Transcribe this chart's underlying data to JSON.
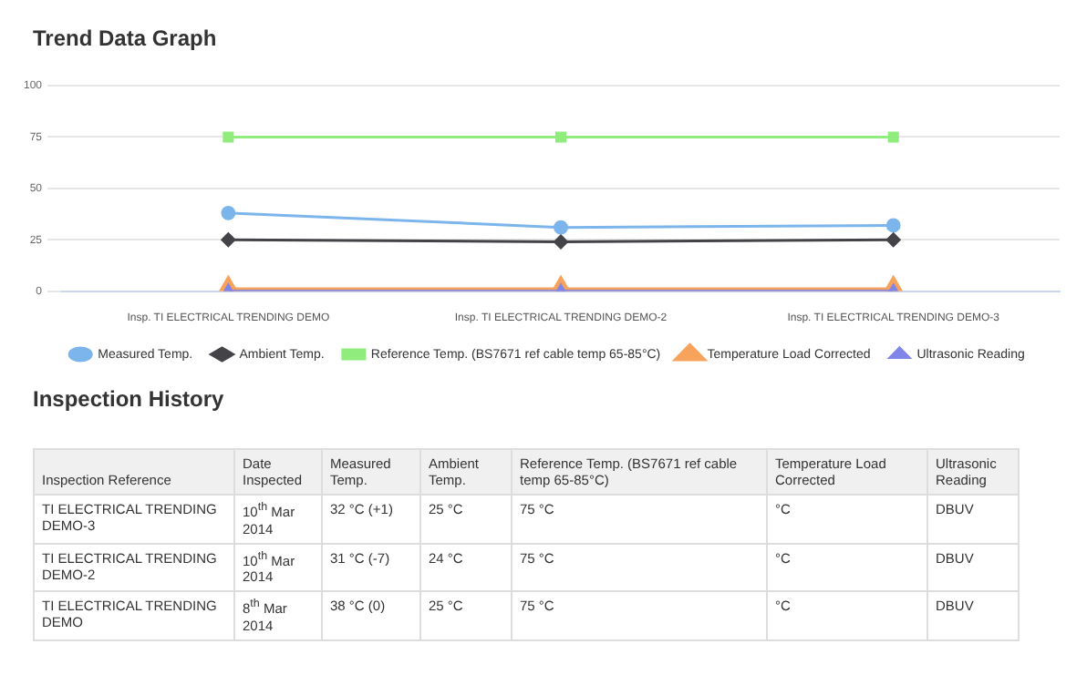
{
  "chart_data": [
    {
      "type": "line",
      "title": "Trend Data Graph",
      "categories": [
        "Insp. TI ELECTRICAL TRENDING DEMO",
        "Insp. TI ELECTRICAL TRENDING DEMO-2",
        "Insp. TI ELECTRICAL TRENDING DEMO-3"
      ],
      "series": [
        {
          "name": "Measured Temp.",
          "color": "#7cb5ec",
          "marker": "circle",
          "values": [
            38,
            31,
            32
          ]
        },
        {
          "name": "Ambient Temp.",
          "color": "#434348",
          "marker": "diamond",
          "values": [
            25,
            24,
            25
          ]
        },
        {
          "name": "Reference Temp. (BS7671 ref cable temp 65-85°C)",
          "color": "#90ed7d",
          "marker": "square",
          "values": [
            75,
            75,
            75
          ]
        },
        {
          "name": "Temperature Load Corrected",
          "color": "#f7a35c",
          "marker": "triangle",
          "values": [
            0,
            0,
            0
          ]
        },
        {
          "name": "Ultrasonic Reading",
          "color": "#8085e9",
          "marker": "triangle",
          "values": [
            0,
            0,
            0
          ]
        }
      ],
      "ylim": [
        0,
        100
      ],
      "yticks": [
        0,
        25,
        50,
        75,
        100
      ],
      "grid": "y",
      "legend": "bottom"
    },
    {
      "type": "other",
      "title": "Inspection History",
      "annotations": [
        "Inspection Reference",
        "Date Inspected",
        "Measured Temp.",
        "Ambient Temp.",
        "Reference Temp. (BS7671 ref cable temp 65-85°C)",
        "Temperature Load Corrected",
        "Ultrasonic Reading",
        "TI ELECTRICAL TRENDING DEMO-3",
        "10$^{th}$ Mar 2014",
        "32 °C (+1)",
        "25 °C",
        "75 °C",
        "°C",
        "DBUV",
        "TI ELECTRICAL TRENDING DEMO-2",
        "10$^{th}$ Mar 2014",
        "31 °C (-7)",
        "24 °C",
        "75 °C",
        "°C",
        "DBUV",
        "TI ELECTRICAL TRENDING DEMO",
        "8$^{th}$ Mar 2014",
        "38 °C (0)",
        "25 °C",
        "75 °C",
        "°C",
        "DBUV"
      ]
    }
  ]
}
